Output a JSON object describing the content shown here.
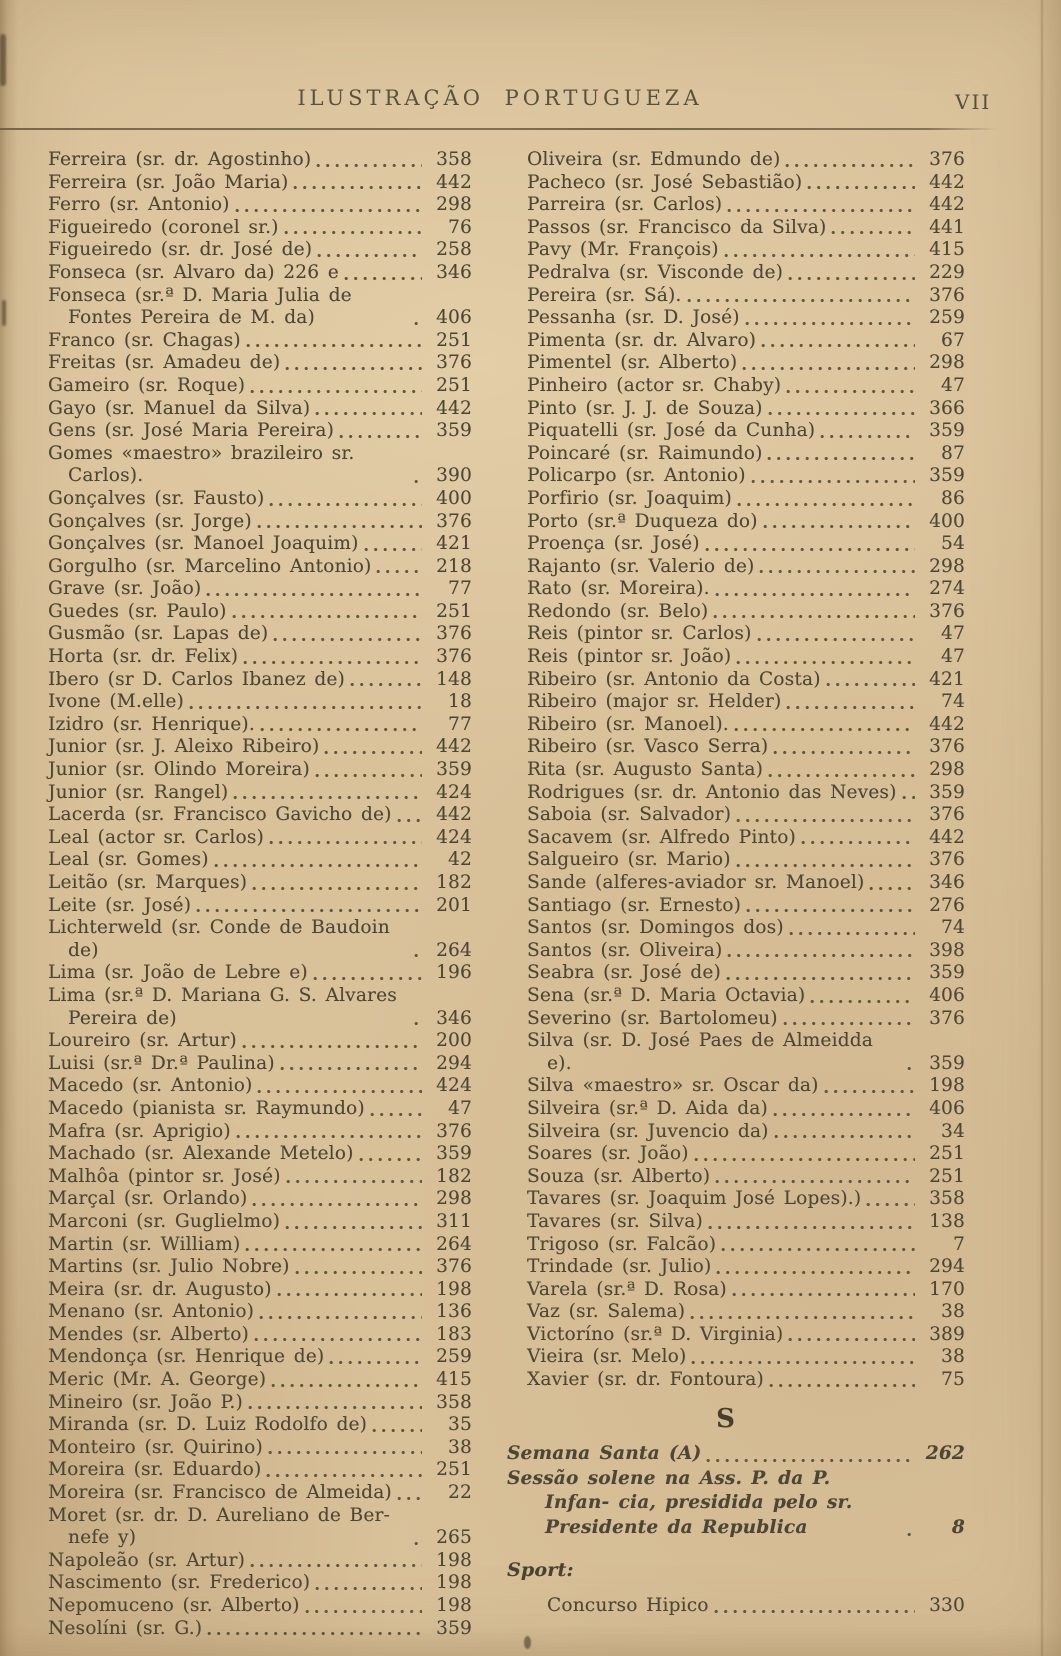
{
  "header": {
    "title": "ILUSTRAÇÃO  PORTUGUEZA",
    "page_number": "VII"
  },
  "index": {
    "left_column": [
      {
        "name": "Ferreira (sr. dr. Agostinho)",
        "page": "358"
      },
      {
        "name": "Ferreira (sr. João Maria)",
        "page": "442"
      },
      {
        "name": "Ferro (sr. Antonio)",
        "page": "298"
      },
      {
        "name": "Figueiredo (coronel sr.)",
        "page": "76"
      },
      {
        "name": "Figueiredo (sr. dr. José de)",
        "page": "258"
      },
      {
        "name": "Fonseca (sr. Alvaro da) 226 e",
        "page": "346"
      },
      {
        "name": "Fonseca (sr.ª D. Maria Julia de Fontes Pereira de M. da)",
        "page": "406"
      },
      {
        "name": "Franco (sr. Chagas)",
        "page": "251"
      },
      {
        "name": "Freitas (sr. Amadeu de)",
        "page": "376"
      },
      {
        "name": "Gameiro (sr. Roque)",
        "page": "251"
      },
      {
        "name": "Gayo (sr. Manuel da Silva)",
        "page": "442"
      },
      {
        "name": "Gens (sr. José Maria Pereira)",
        "page": "359"
      },
      {
        "name": "Gomes «maestro» brazileiro sr. Carlos).",
        "page": "390"
      },
      {
        "name": "Gonçalves (sr. Fausto)",
        "page": "400"
      },
      {
        "name": "Gonçalves (sr. Jorge)",
        "page": "376"
      },
      {
        "name": "Gonçalves (sr. Manoel Joaquim)",
        "page": "421"
      },
      {
        "name": "Gorgulho (sr. Marcelino Antonio)",
        "page": "218"
      },
      {
        "name": "Grave (sr. João)",
        "page": "77"
      },
      {
        "name": "Guedes (sr. Paulo)",
        "page": "251"
      },
      {
        "name": "Gusmão (sr. Lapas de)",
        "page": "376"
      },
      {
        "name": "Horta (sr. dr. Felix)",
        "page": "376"
      },
      {
        "name": "Ibero (sr D. Carlos Ibanez de)",
        "page": "148"
      },
      {
        "name": "Ivone (M.elle)",
        "page": "18"
      },
      {
        "name": "Izidro (sr. Henrique).",
        "page": "77"
      },
      {
        "name": "Junior (sr. J. Aleixo Ribeiro)",
        "page": "442"
      },
      {
        "name": "Junior (sr. Olindo Moreira)",
        "page": "359"
      },
      {
        "name": "Junior (sr. Rangel)",
        "page": "424"
      },
      {
        "name": "Lacerda (sr. Francisco Gavicho de)",
        "page": "442"
      },
      {
        "name": "Leal (actor sr. Carlos)",
        "page": "424"
      },
      {
        "name": "Leal (sr. Gomes)",
        "page": "42"
      },
      {
        "name": "Leitão (sr. Marques)",
        "page": "182"
      },
      {
        "name": "Leite (sr. José)",
        "page": "201"
      },
      {
        "name": "Lichterweld (sr. Conde de Baudoin de)",
        "page": "264"
      },
      {
        "name": "Lima (sr. João de Lebre e)",
        "page": "196"
      },
      {
        "name": "Lima (sr.ª D. Mariana G. S. Alvares Pereira de)",
        "page": "346"
      },
      {
        "name": "Loureiro (sr. Artur)",
        "page": "200"
      },
      {
        "name": "Luisi (sr.ª Dr.ª Paulina)",
        "page": "294"
      },
      {
        "name": "Macedo (sr. Antonio)",
        "page": "424"
      },
      {
        "name": "Macedo (pianista sr. Raymundo)",
        "page": "47"
      },
      {
        "name": "Mafra (sr. Aprigio)",
        "page": "376"
      },
      {
        "name": "Machado (sr. Alexande Metelo)",
        "page": "359"
      },
      {
        "name": "Malhôa (pintor sr. José)",
        "page": "182"
      },
      {
        "name": "Marçal (sr. Orlando)",
        "page": "298"
      },
      {
        "name": "Marconi (sr. Guglielmo)",
        "page": "311"
      },
      {
        "name": "Martin (sr. William)",
        "page": "264"
      },
      {
        "name": "Martins (sr. Julio Nobre)",
        "page": "376"
      },
      {
        "name": "Meira (sr. dr. Augusto)",
        "page": "198"
      },
      {
        "name": "Menano (sr. Antonio)",
        "page": "136"
      },
      {
        "name": "Mendes (sr. Alberto)",
        "page": "183"
      },
      {
        "name": "Mendonça (sr. Henrique de)",
        "page": "259"
      },
      {
        "name": "Meric (Mr. A. George)",
        "page": "415"
      },
      {
        "name": "Mineiro (sr. João P.)",
        "page": "358"
      },
      {
        "name": "Miranda (sr. D. Luiz Rodolfo de)",
        "page": "35"
      },
      {
        "name": "Monteiro (sr. Quirino)",
        "page": "38"
      },
      {
        "name": "Moreira (sr. Eduardo)",
        "page": "251"
      },
      {
        "name": "Moreira (sr. Francisco de Almeida)",
        "page": "22"
      },
      {
        "name": "Moret (sr. dr. D. Aureliano de Ber- nefe y)",
        "page": "265"
      },
      {
        "name": "Napoleão (sr. Artur)",
        "page": "198"
      },
      {
        "name": "Nascimento (sr. Frederico)",
        "page": "198"
      },
      {
        "name": "Nepomuceno (sr. Alberto)",
        "page": "198"
      },
      {
        "name": "Nesolíni (sr. G.)",
        "page": "359"
      }
    ],
    "right_column": [
      {
        "name": "Oliveira (sr. Edmundo de)",
        "page": "376"
      },
      {
        "name": "Pacheco (sr. José Sebastião)",
        "page": "442"
      },
      {
        "name": "Parreira (sr. Carlos)",
        "page": "442"
      },
      {
        "name": "Passos (sr. Francisco da Silva)",
        "page": "441"
      },
      {
        "name": "Pavy (Mr. François)",
        "page": "415"
      },
      {
        "name": "Pedralva (sr. Visconde de)",
        "page": "229"
      },
      {
        "name": "Pereira (sr. Sá).",
        "page": "376"
      },
      {
        "name": "Pessanha (sr. D. José)",
        "page": "259"
      },
      {
        "name": "Pimenta (sr. dr. Alvaro)",
        "page": "67"
      },
      {
        "name": "Pimentel (sr. Alberto)",
        "page": "298"
      },
      {
        "name": "Pinheiro (actor sr. Chaby)",
        "page": "47"
      },
      {
        "name": "Pinto (sr. J. J. de Souza)",
        "page": "366"
      },
      {
        "name": "Piquatelli (sr. José da Cunha)",
        "page": "359"
      },
      {
        "name": "Poincaré (sr. Raimundo)",
        "page": "87"
      },
      {
        "name": "Policarpo (sr. Antonio)",
        "page": "359"
      },
      {
        "name": "Porfirio (sr. Joaquim)",
        "page": "86"
      },
      {
        "name": "Porto (sr.ª Duqueza do)",
        "page": "400"
      },
      {
        "name": "Proença (sr. José)",
        "page": "54"
      },
      {
        "name": "Rajanto (sr. Valerio de)",
        "page": "298"
      },
      {
        "name": "Rato (sr. Moreira).",
        "page": "274"
      },
      {
        "name": "Redondo (sr. Belo)",
        "page": "376"
      },
      {
        "name": "Reis (pintor sr. Carlos)",
        "page": "47"
      },
      {
        "name": "Reis (pintor sr. João)",
        "page": "47"
      },
      {
        "name": "Ribeiro (sr. Antonio da Costa)",
        "page": "421"
      },
      {
        "name": "Ribeiro (major sr. Helder)",
        "page": "74"
      },
      {
        "name": "Ribeiro (sr. Manoel).",
        "page": "442"
      },
      {
        "name": "Ribeiro (sr. Vasco Serra)",
        "page": "376"
      },
      {
        "name": "Rita (sr. Augusto Santa)",
        "page": "298"
      },
      {
        "name": "Rodrigues (sr. dr. Antonio das Neves)",
        "page": "359"
      },
      {
        "name": "Saboia (sr. Salvador)",
        "page": "376"
      },
      {
        "name": "Sacavem (sr. Alfredo Pinto)",
        "page": "442"
      },
      {
        "name": "Salgueiro (sr. Mario)",
        "page": "376"
      },
      {
        "name": "Sande (alferes-aviador sr. Manoel)",
        "page": "346"
      },
      {
        "name": "Santiago (sr. Ernesto)",
        "page": "276"
      },
      {
        "name": "Santos (sr. Domingos dos)",
        "page": "74"
      },
      {
        "name": "Santos (sr. Oliveira)",
        "page": "398"
      },
      {
        "name": "Seabra (sr. José de)",
        "page": "359"
      },
      {
        "name": "Sena (sr.ª D. Maria Octavia)",
        "page": "406"
      },
      {
        "name": "Severino (sr. Bartolomeu)",
        "page": "376"
      },
      {
        "name": "Silva (sr. D. José Paes de Almeidda e).",
        "page": "359"
      },
      {
        "name": "Silva «maestro» sr. Oscar da)",
        "page": "198"
      },
      {
        "name": "Silveira (sr.ª D. Aida da)",
        "page": "406"
      },
      {
        "name": "Silveira (sr. Juvencio da)",
        "page": "34"
      },
      {
        "name": "Soares (sr. João)",
        "page": "251"
      },
      {
        "name": "Souza (sr. Alberto)",
        "page": "251"
      },
      {
        "name": "Tavares (sr. Joaquim José Lopes).)",
        "page": "358"
      },
      {
        "name": "Tavares (sr. Silva)",
        "page": "138"
      },
      {
        "name": "Trigoso (sr. Falcão)",
        "page": "7"
      },
      {
        "name": "Trindade (sr. Julio)",
        "page": "294"
      },
      {
        "name": "Varela (sr.ª D. Rosa)",
        "page": "170"
      },
      {
        "name": "Vaz (sr. Salema)",
        "page": "38"
      },
      {
        "name": "Victoríno (sr.ª D. Virginia)",
        "page": "389"
      },
      {
        "name": "Vieira (sr. Melo)",
        "page": "38"
      },
      {
        "name": "Xavier (sr. dr. Fontoura)",
        "page": "75"
      }
    ],
    "sections": {
      "letter": "S",
      "italic_entries": [
        {
          "name": "Semana Santa (A)",
          "page": "262"
        },
        {
          "name": "Sessão solene na Ass. P. da P. Infan- cia, presidida pelo sr. Presidente da Republica",
          "page": "8"
        }
      ],
      "sport_heading": "Sport:",
      "sport_entries": [
        {
          "name": "Concurso Hipico",
          "page": "330"
        }
      ]
    }
  },
  "colors": {
    "paper": "#d9c19a",
    "ink": "#4c4636"
  }
}
